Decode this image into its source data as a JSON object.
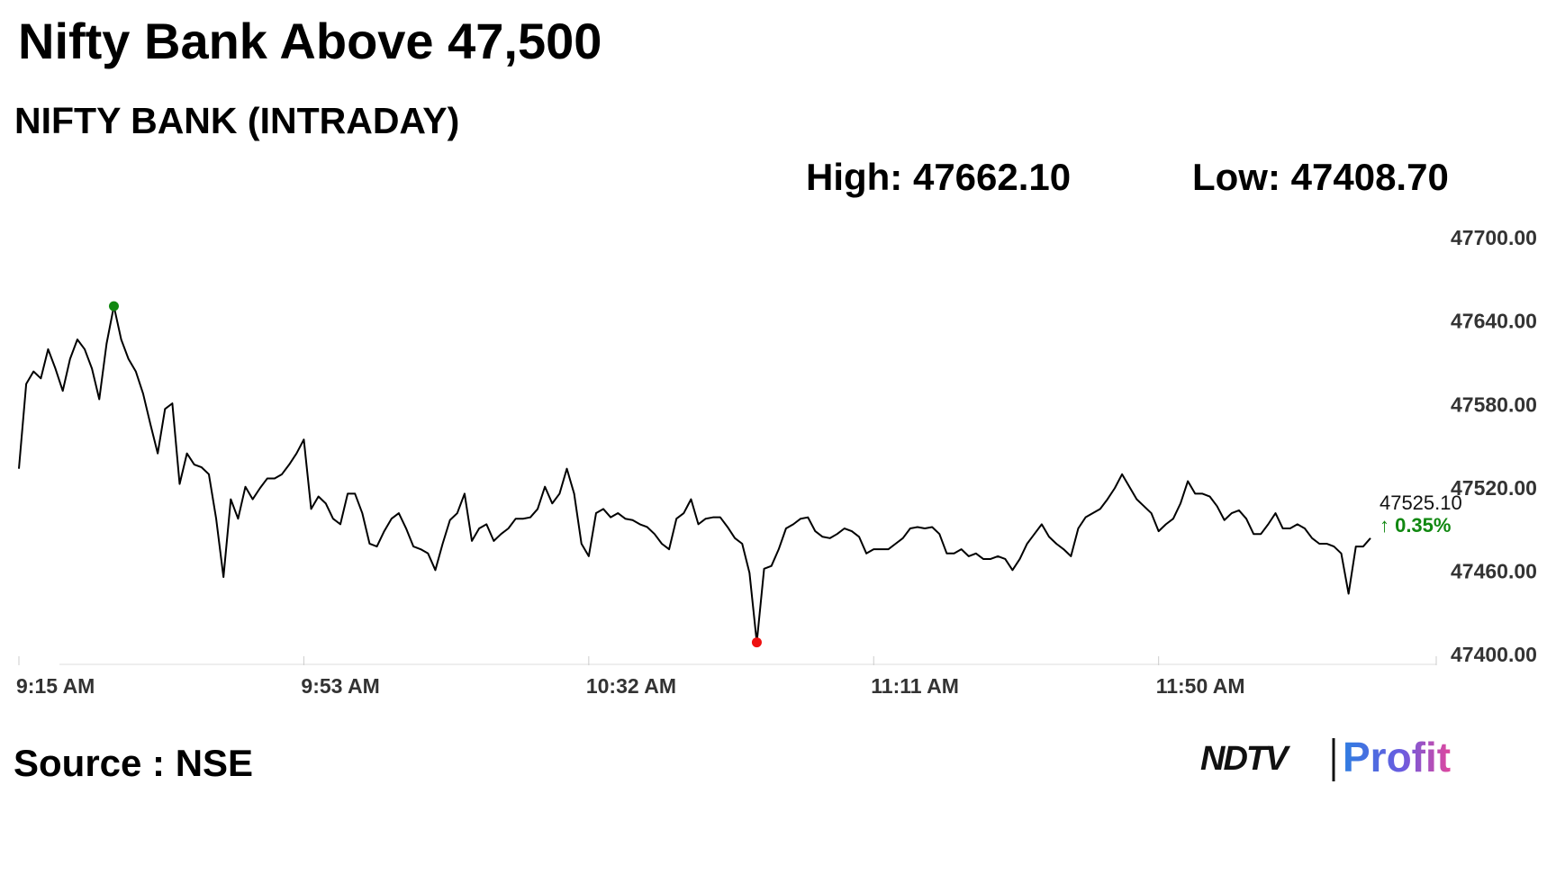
{
  "chart_data": {
    "type": "line",
    "title": "Nifty Bank Above 47,500",
    "subtitle": "NIFTY BANK (INTRADAY)",
    "high_label": "High: 47662.10",
    "low_label": "Low: 47408.70",
    "current_value": "47525.10",
    "change": "↑ 0.35%",
    "source": "Source : NSE",
    "brand": [
      "NDTV",
      "Profit"
    ],
    "color": "#000000",
    "marker_colors": {
      "high": "#118811",
      "low": "#ee1111"
    },
    "change_color": "#118811",
    "categories": [
      "9:15 AM",
      null,
      null,
      null,
      null,
      null,
      null,
      null,
      null,
      null,
      null,
      null,
      null,
      null,
      null,
      null,
      null,
      null,
      null,
      null,
      null,
      null,
      null,
      null,
      null,
      null,
      null,
      null,
      null,
      null,
      null,
      null,
      null,
      null,
      null,
      null,
      null,
      null,
      null,
      "9:53 AM",
      null,
      null,
      null,
      null,
      null,
      null,
      null,
      null,
      null,
      null,
      null,
      null,
      null,
      null,
      null,
      null,
      null,
      null,
      null,
      null,
      null,
      null,
      null,
      null,
      null,
      null,
      null,
      null,
      null,
      null,
      null,
      null,
      null,
      null,
      null,
      null,
      null,
      null,
      "10:32 AM",
      null,
      null,
      null,
      null,
      null,
      null,
      null,
      null,
      null,
      null,
      null,
      null,
      null,
      null,
      null,
      null,
      null,
      null,
      null,
      null,
      null,
      null,
      null,
      null,
      null,
      null,
      null,
      null,
      null,
      null,
      null,
      null,
      null,
      null,
      null,
      null,
      null,
      null,
      "11:11 AM",
      null,
      null,
      null,
      null,
      null,
      null,
      null,
      null,
      null,
      null,
      null,
      null,
      null,
      null,
      null,
      null,
      null,
      null,
      null,
      null,
      null,
      null,
      null,
      null,
      null,
      null,
      null,
      null,
      null,
      null,
      null,
      null,
      null,
      null,
      null,
      null,
      null,
      null,
      "11:50 AM",
      null,
      null,
      null,
      null,
      null,
      null,
      null,
      null,
      null,
      null,
      null,
      null,
      null,
      null,
      null,
      null,
      null,
      null,
      null,
      null,
      null,
      null,
      null,
      null,
      null,
      null,
      null,
      null,
      null,
      null,
      null,
      null,
      null,
      null,
      null,
      null,
      null,
      null
    ],
    "values": [
      47535,
      47596,
      47605,
      47600,
      47621,
      47607,
      47591,
      47614,
      47628,
      47621,
      47607,
      47585,
      47625,
      47652,
      47628,
      47614,
      47605,
      47589,
      47567,
      47546,
      47578,
      47582,
      47524,
      47546,
      47538,
      47536,
      47531,
      47499,
      47457,
      47513,
      47499,
      47522,
      47513,
      47521,
      47528,
      47528,
      47531,
      47538,
      47546,
      47556,
      47506,
      47515,
      47510,
      47499,
      47495,
      47517,
      47517,
      47503,
      47481,
      47479,
      47490,
      47499,
      47503,
      47492,
      47479,
      47477,
      47474,
      47462,
      47481,
      47498,
      47503,
      47517,
      47483,
      47492,
      47495,
      47483,
      47488,
      47492,
      47499,
      47499,
      47500,
      47506,
      47522,
      47510,
      47517,
      47535,
      47517,
      47481,
      47472,
      47503,
      47506,
      47500,
      47503,
      47499,
      47498,
      47495,
      47493,
      47488,
      47481,
      47477,
      47499,
      47503,
      47513,
      47495,
      47499,
      47500,
      47500,
      47493,
      47485,
      47481,
      47460,
      47410,
      47463,
      47465,
      47477,
      47492,
      47495,
      47499,
      47500,
      47490,
      47486,
      47485,
      47488,
      47492,
      47490,
      47486,
      47474,
      47477,
      47477,
      47477,
      47481,
      47485,
      47492,
      47493,
      47492,
      47493,
      47488,
      47474,
      47474,
      47477,
      47472,
      47474,
      47470,
      47470,
      47472,
      47470,
      47462,
      47470,
      47481,
      47488,
      47495,
      47486,
      47481,
      47477,
      47472,
      47492,
      47500,
      47503,
      47506,
      47513,
      47521,
      47531,
      47522,
      47513,
      47508,
      47503,
      47490,
      47495,
      47499,
      47510,
      47526,
      47517,
      47517,
      47515,
      47508,
      47498,
      47503,
      47505,
      47499,
      47488,
      47488,
      47495,
      47503,
      47492,
      47492,
      47495,
      47492,
      47485,
      47481,
      47481,
      47479,
      47474,
      47445,
      47479,
      47479,
      47485,
      null,
      null,
      null,
      null,
      null,
      null,
      null,
      null,
      null
    ],
    "ylim": [
      47400,
      47700
    ],
    "yticks": [
      {
        "value": 47400,
        "label": "47400.00"
      },
      {
        "value": 47460,
        "label": "47460.00"
      },
      {
        "value": 47520,
        "label": "47520.00"
      },
      {
        "value": 47580,
        "label": "47580.00"
      },
      {
        "value": 47640,
        "label": "47640.00"
      },
      {
        "value": 47700,
        "label": "47700.00"
      }
    ],
    "grid": false
  }
}
